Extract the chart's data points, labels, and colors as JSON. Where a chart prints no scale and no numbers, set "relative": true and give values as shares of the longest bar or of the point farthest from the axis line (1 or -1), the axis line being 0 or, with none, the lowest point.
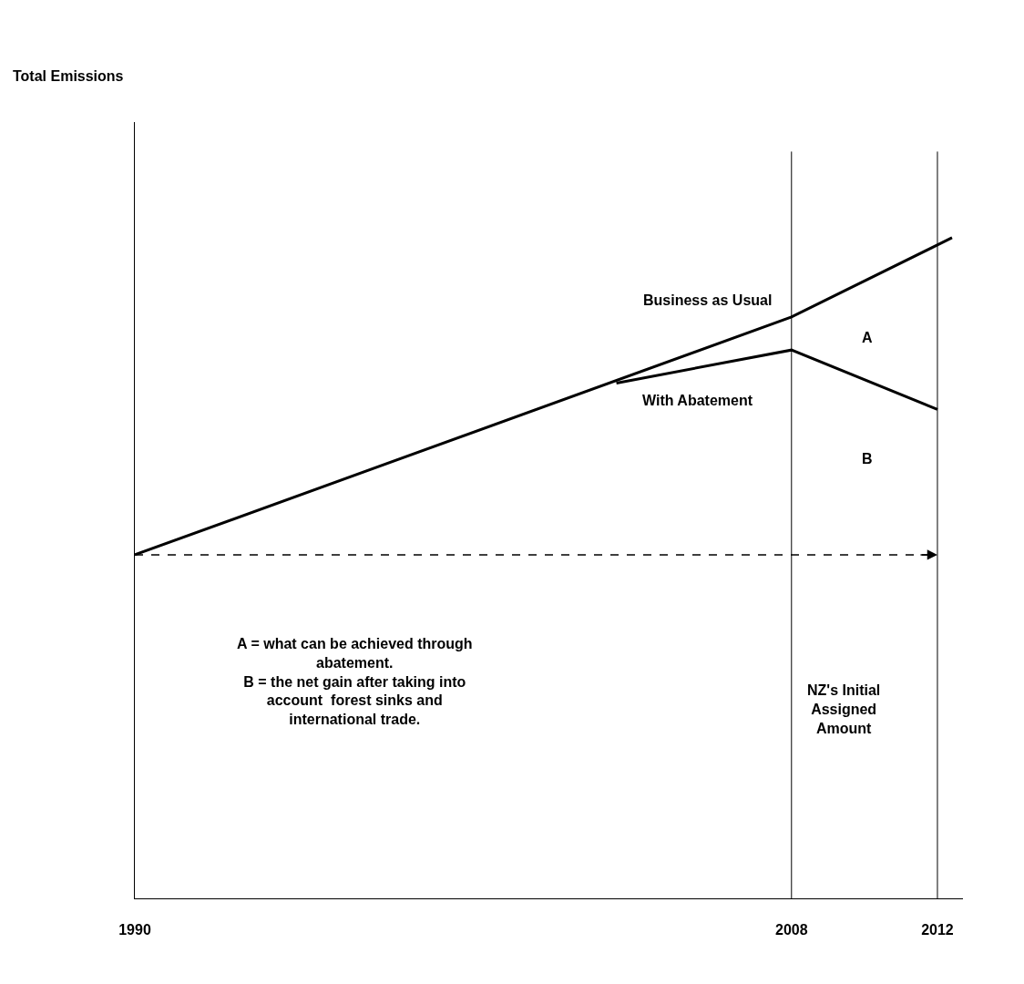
{
  "chart_data": {
    "type": "line",
    "relative": true,
    "xlim": [
      1990,
      2012.7
    ],
    "xticks": [
      1990,
      2008,
      2012
    ],
    "tick_labels": "x",
    "marker": "none",
    "series": [
      {
        "name": "Business as Usual",
        "color": "#000000",
        "x": [
          1990,
          2008,
          2012.4
        ],
        "values": [
          0.52,
          0.88,
          1.0
        ]
      },
      {
        "name": "With Abatement",
        "color": "#000000",
        "x": [
          2003.2,
          2008,
          2012
        ],
        "values": [
          0.78,
          0.83,
          0.74
        ]
      }
    ],
    "ref_lines": [
      {
        "axis": "x",
        "value": 2008,
        "color": "#000000"
      },
      {
        "axis": "x",
        "value": 2012,
        "color": "#000000"
      },
      {
        "axis": "y",
        "value": 0.52,
        "color": "#000000",
        "line_style": "dashed"
      }
    ],
    "annotations": [
      "Total Emissions",
      "A",
      "B",
      "A = what can be achieved through\nabatement.\nB = the net gain after taking into\naccount  forest sinks and\ninternational trade.",
      "NZ's Initial\nAssigned\nAmount"
    ]
  }
}
